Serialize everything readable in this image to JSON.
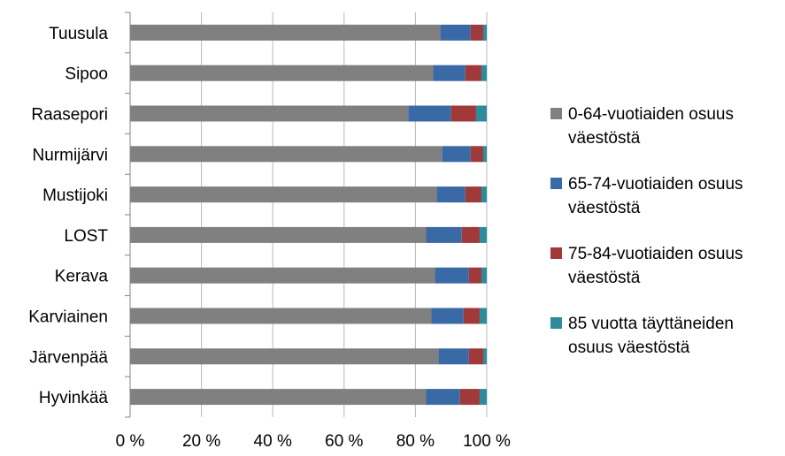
{
  "chart_data": {
    "type": "bar",
    "orientation": "horizontal",
    "stacked": "percent",
    "categories": [
      "Tuusula",
      "Sipoo",
      "Raasepori",
      "Nurmijärvi",
      "Mustijoki",
      "LOST",
      "Kerava",
      "Karviainen",
      "Järvenpää",
      "Hyvinkää"
    ],
    "series": [
      {
        "name": "0-64-vuotiaiden osuus väestöstä",
        "color": "#808080",
        "values": [
          87,
          85,
          78,
          87.5,
          86,
          83,
          85.5,
          84.5,
          86.5,
          83
        ]
      },
      {
        "name": "65-74-vuotiaiden osuus väestöstä",
        "color": "#3a6aa6",
        "values": [
          8.5,
          9,
          12,
          8,
          8,
          10,
          9.5,
          9,
          8.5,
          9.5
        ]
      },
      {
        "name": "75-84-vuotiaiden osuus väestöstä",
        "color": "#a0393a",
        "values": [
          3.5,
          4.5,
          7,
          3.5,
          4.5,
          5,
          3.5,
          4.5,
          4,
          5.5
        ]
      },
      {
        "name": "85 vuotta täyttäneiden osuus väestöstä",
        "color": "#2e8b9c",
        "values": [
          1,
          1.5,
          3,
          1,
          1.5,
          2,
          1.5,
          2,
          1,
          2
        ]
      }
    ],
    "xticks": [
      "0 %",
      "20 %",
      "40 %",
      "60 %",
      "80 %",
      "100 %"
    ],
    "xlim": [
      0,
      100
    ],
    "grid": true,
    "legend": "right",
    "title": "",
    "xlabel": "",
    "ylabel": ""
  }
}
